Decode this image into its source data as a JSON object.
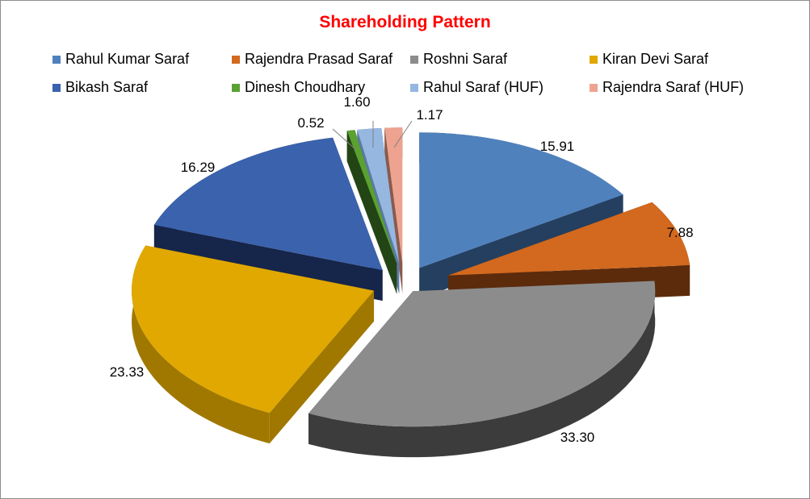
{
  "chart_data": {
    "type": "pie",
    "title": "Shareholding Pattern",
    "legend_position": "top",
    "style": "3d-exploded",
    "categories": [
      "Rahul Kumar Saraf",
      "Rajendra Prasad Saraf",
      "Roshni Saraf",
      "Kiran Devi Saraf",
      "Bikash Saraf",
      "Dinesh Choudhary",
      "Rahul Saraf (HUF)",
      "Rajendra Saraf (HUF)"
    ],
    "values": [
      15.91,
      7.88,
      33.3,
      23.33,
      16.29,
      0.52,
      1.6,
      1.17
    ],
    "data_labels": [
      "15.91",
      "7.88",
      "33.30",
      "23.33",
      "16.29",
      "0.52",
      "1.60",
      "1.17"
    ],
    "colors": [
      "#4f81bd",
      "#d2691e",
      "#8c8c8c",
      "#e0a800",
      "#3a62ad",
      "#5aa132",
      "#95b7e0",
      "#eda38f"
    ],
    "side_colors": [
      "#243f60",
      "#5c2b0c",
      "#3c3c3c",
      "#a07800",
      "#16254a",
      "#234515",
      "#5b7aa6",
      "#8a5a4d"
    ]
  }
}
